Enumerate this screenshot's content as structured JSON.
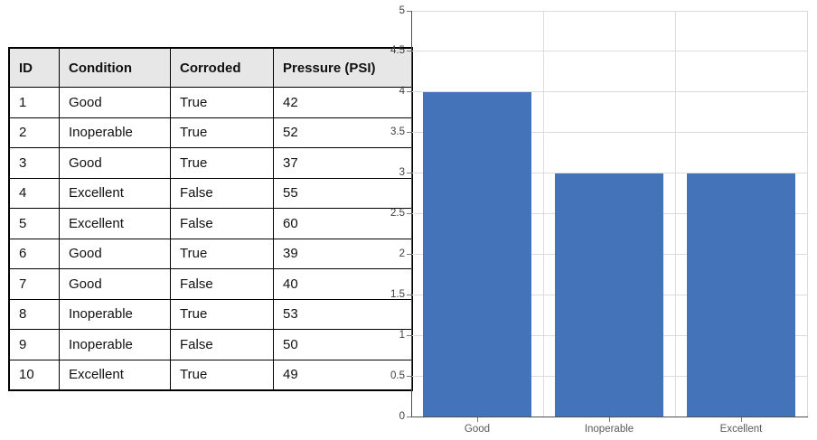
{
  "table": {
    "headers": [
      "ID",
      "Condition",
      "Corroded",
      "Pressure (PSI)"
    ],
    "rows": [
      [
        "1",
        "Good",
        "True",
        "42"
      ],
      [
        "2",
        "Inoperable",
        "True",
        "52"
      ],
      [
        "3",
        "Good",
        "True",
        "37"
      ],
      [
        "4",
        "Excellent",
        "False",
        "55"
      ],
      [
        "5",
        "Excellent",
        "False",
        "60"
      ],
      [
        "6",
        "Good",
        "True",
        "39"
      ],
      [
        "7",
        "Good",
        "False",
        "40"
      ],
      [
        "8",
        "Inoperable",
        "True",
        "53"
      ],
      [
        "9",
        "Inoperable",
        "False",
        "50"
      ],
      [
        "10",
        "Excellent",
        "True",
        "49"
      ]
    ]
  },
  "chart_data": {
    "type": "bar",
    "categories": [
      "Good",
      "Inoperable",
      "Excellent"
    ],
    "values": [
      4,
      3,
      3
    ],
    "title": "",
    "xlabel": "",
    "ylabel": "",
    "ylim": [
      0,
      5
    ],
    "yticks": [
      0,
      0.5,
      1,
      1.5,
      2,
      2.5,
      3,
      3.5,
      4,
      4.5,
      5
    ],
    "grid": true,
    "legend": "none",
    "bar_color": "#4473BA",
    "axis_color": "#505050",
    "gridline_color": "#dcdcdc",
    "tick_label_color": "#404040"
  }
}
